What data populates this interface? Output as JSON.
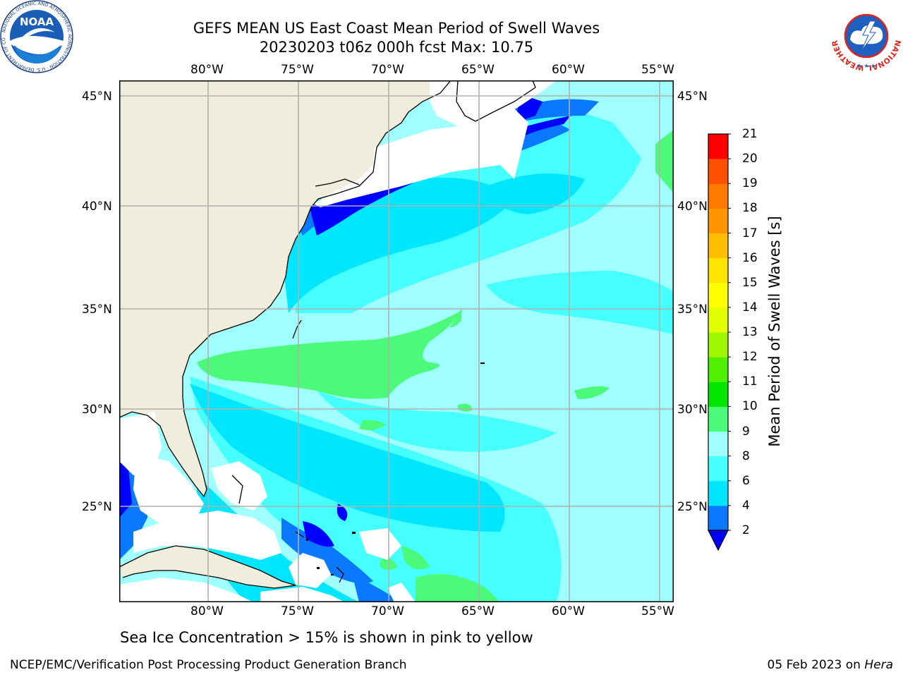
{
  "header": {
    "title_line1": "GEFS MEAN US East Coast Mean Period of Swell Waves",
    "title_line2": "20230203 t06z 000h fcst   Max: 10.75"
  },
  "logos": {
    "left": {
      "icon": "noaa-logo",
      "text": "NOAA",
      "ring_text": "NATIONAL OCEANIC AND ATMOSPHERIC ADMINISTRATION · U.S. DEPARTMENT OF COMMERCE"
    },
    "right": {
      "icon": "nws-logo",
      "ring_text": "NATIONAL WEATHER SERVICE"
    }
  },
  "map": {
    "lon_labels": [
      "80°W",
      "75°W",
      "70°W",
      "65°W",
      "60°W",
      "55°W"
    ],
    "lat_labels": [
      "45°N",
      "40°N",
      "35°N",
      "30°N",
      "25°N"
    ],
    "colors": {
      "land": "#efeedc",
      "ocean_default": "#a0ffff",
      "grid": "#b0b0b0",
      "coast": "#000000"
    }
  },
  "colorbar": {
    "label": "Mean Period of Swell Waves [s]",
    "ticks": [
      "2",
      "4",
      "6",
      "8",
      "9",
      "10",
      "11",
      "12",
      "13",
      "14",
      "15",
      "16",
      "17",
      "18",
      "19",
      "20",
      "21"
    ],
    "bands": [
      {
        "from": "2",
        "to": "4",
        "color": "#0a78ff"
      },
      {
        "from": "4",
        "to": "6",
        "color": "#00e6ff"
      },
      {
        "from": "6",
        "to": "8",
        "color": "#46ffff"
      },
      {
        "from": "8",
        "to": "9",
        "color": "#a0ffff"
      },
      {
        "from": "9",
        "to": "10",
        "color": "#4bfa78"
      },
      {
        "from": "10",
        "to": "11",
        "color": "#00e600"
      },
      {
        "from": "11",
        "to": "12",
        "color": "#50f000"
      },
      {
        "from": "12",
        "to": "13",
        "color": "#a0f500"
      },
      {
        "from": "13",
        "to": "14",
        "color": "#e1ff00"
      },
      {
        "from": "14",
        "to": "15",
        "color": "#ffff00"
      },
      {
        "from": "15",
        "to": "16",
        "color": "#ffe600"
      },
      {
        "from": "16",
        "to": "17",
        "color": "#ffbe00"
      },
      {
        "from": "17",
        "to": "18",
        "color": "#ff9600"
      },
      {
        "from": "18",
        "to": "19",
        "color": "#ff7800"
      },
      {
        "from": "19",
        "to": "20",
        "color": "#ff5000"
      },
      {
        "from": "20",
        "to": "21",
        "color": "#ff2800"
      },
      {
        "from": "21",
        "to": "",
        "color": "#ff0000"
      }
    ],
    "under_color": "#0000ff"
  },
  "note": "Sea Ice Concentration > 15% is shown in pink to yellow",
  "footer": {
    "left": "NCEP/EMC/Verification Post Processing Product Generation Branch",
    "date": "05 Feb 2023 on",
    "host": "Hera"
  }
}
